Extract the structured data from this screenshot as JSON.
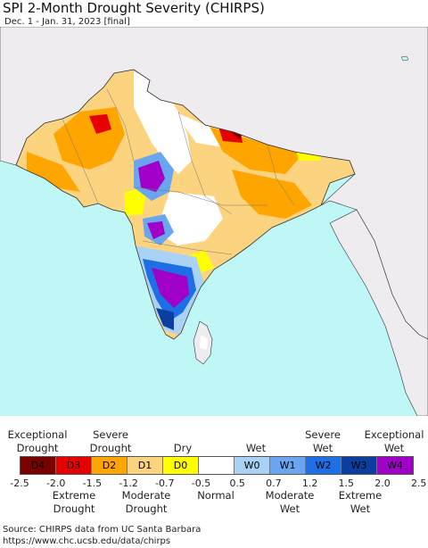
{
  "title": "SPI 2-Month Drought Severity (CHIRPS)",
  "subtitle": "Dec. 1 - Jan. 31, 2023 [final]",
  "map": {
    "colors": {
      "ocean": "#bff7f7",
      "land_outside": "#eeecef",
      "normal": "#ffffff",
      "border": "#333333"
    }
  },
  "legend": {
    "top_labels": [
      {
        "name": "exceptional-drought",
        "line1": "Exceptional",
        "line2": "Drought"
      },
      {
        "name": "severe-drought",
        "line1": "Severe",
        "line2": "Drought"
      },
      {
        "name": "dry",
        "line1": "Dry",
        "line2": ""
      },
      {
        "name": "wet",
        "line1": "Wet",
        "line2": ""
      },
      {
        "name": "severe-wet",
        "line1": "Severe",
        "line2": "Wet"
      },
      {
        "name": "exceptional-wet",
        "line1": "Exceptional",
        "line2": "Wet"
      }
    ],
    "bottom_labels": [
      {
        "name": "extreme-drought",
        "line1": "Extreme",
        "line2": "Drought"
      },
      {
        "name": "moderate-drought",
        "line1": "Moderate",
        "line2": "Drought"
      },
      {
        "name": "normal",
        "line1": "Normal",
        "line2": ""
      },
      {
        "name": "moderate-wet",
        "line1": "Moderate",
        "line2": "Wet"
      },
      {
        "name": "extreme-wet",
        "line1": "Extreme",
        "line2": "Wet"
      }
    ],
    "swatches": [
      {
        "label": "D4",
        "color": "#7b0000"
      },
      {
        "label": "D3",
        "color": "#e60000"
      },
      {
        "label": "D2",
        "color": "#ffa500"
      },
      {
        "label": "D1",
        "color": "#fcd37f"
      },
      {
        "label": "D0",
        "color": "#ffff00"
      },
      {
        "label": "",
        "color": "#ffffff"
      },
      {
        "label": "W0",
        "color": "#aad2f7"
      },
      {
        "label": "W1",
        "color": "#6aa6f0"
      },
      {
        "label": "W2",
        "color": "#1e6ee6"
      },
      {
        "label": "W3",
        "color": "#0a3fa0"
      },
      {
        "label": "W4",
        "color": "#a000c8"
      }
    ],
    "ticks": [
      "-2.5",
      "-2.0",
      "-1.5",
      "-1.2",
      "-0.7",
      "-0.5",
      "0.5",
      "0.7",
      "1.2",
      "1.5",
      "2.0",
      "2.5"
    ]
  },
  "source": {
    "line1": "Source: CHIRPS data from UC Santa Barbara",
    "line2": "https://www.chc.ucsb.edu/data/chirps"
  }
}
